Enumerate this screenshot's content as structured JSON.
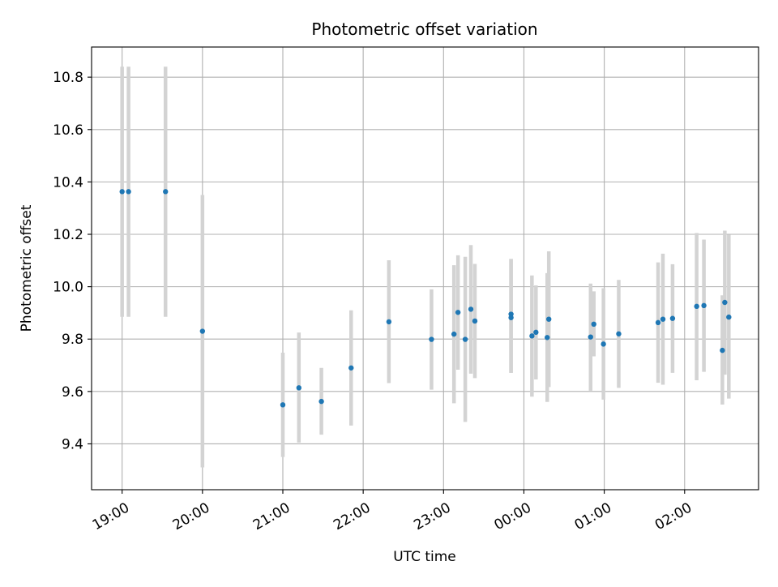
{
  "chart_data": {
    "type": "scatter",
    "title": "Photometric offset variation",
    "xlabel": "UTC time",
    "ylabel": "Photometric offset",
    "x_unit": "hours since 19:00 UTC",
    "xlim": [
      -0.38,
      7.92
    ],
    "ylim": [
      9.225,
      10.915
    ],
    "grid": true,
    "x_ticks": [
      {
        "value": 0,
        "label": "19:00"
      },
      {
        "value": 1,
        "label": "20:00"
      },
      {
        "value": 2,
        "label": "21:00"
      },
      {
        "value": 3,
        "label": "22:00"
      },
      {
        "value": 4,
        "label": "23:00"
      },
      {
        "value": 5,
        "label": "00:00"
      },
      {
        "value": 6,
        "label": "01:00"
      },
      {
        "value": 7,
        "label": "02:00"
      }
    ],
    "y_ticks": [
      {
        "value": 9.4,
        "label": "9.4"
      },
      {
        "value": 9.6,
        "label": "9.6"
      },
      {
        "value": 9.8,
        "label": "9.8"
      },
      {
        "value": 10.0,
        "label": "10.0"
      },
      {
        "value": 10.2,
        "label": "10.2"
      },
      {
        "value": 10.4,
        "label": "10.4"
      },
      {
        "value": 10.6,
        "label": "10.6"
      },
      {
        "value": 10.8,
        "label": "10.8"
      }
    ],
    "colors": {
      "point": "#1f77b4",
      "errorbar": "#d3d3d3",
      "grid": "#b0b0b0"
    },
    "points": [
      {
        "x": 0.0,
        "y": 10.363,
        "lo": 9.885,
        "hi": 10.84
      },
      {
        "x": 0.08,
        "y": 10.363,
        "lo": 9.885,
        "hi": 10.84
      },
      {
        "x": 0.54,
        "y": 10.363,
        "lo": 9.885,
        "hi": 10.84
      },
      {
        "x": 1.0,
        "y": 9.83,
        "lo": 9.31,
        "hi": 10.35
      },
      {
        "x": 2.0,
        "y": 9.549,
        "lo": 9.35,
        "hi": 9.748
      },
      {
        "x": 2.2,
        "y": 9.614,
        "lo": 9.405,
        "hi": 9.825
      },
      {
        "x": 2.48,
        "y": 9.562,
        "lo": 9.435,
        "hi": 9.69
      },
      {
        "x": 2.85,
        "y": 9.69,
        "lo": 9.47,
        "hi": 9.91
      },
      {
        "x": 3.32,
        "y": 9.866,
        "lo": 9.632,
        "hi": 10.101
      },
      {
        "x": 3.85,
        "y": 9.799,
        "lo": 9.607,
        "hi": 9.99
      },
      {
        "x": 4.13,
        "y": 9.819,
        "lo": 9.555,
        "hi": 10.082
      },
      {
        "x": 4.18,
        "y": 9.902,
        "lo": 9.683,
        "hi": 10.12
      },
      {
        "x": 4.27,
        "y": 9.799,
        "lo": 9.484,
        "hi": 10.114
      },
      {
        "x": 4.34,
        "y": 9.914,
        "lo": 9.668,
        "hi": 10.159
      },
      {
        "x": 4.39,
        "y": 9.869,
        "lo": 9.651,
        "hi": 10.087
      },
      {
        "x": 4.84,
        "y": 9.895,
        "lo": 9.671,
        "hi": 10.106
      },
      {
        "x": 4.84,
        "y": 9.882,
        "lo": 9.671,
        "hi": 10.106
      },
      {
        "x": 5.1,
        "y": 9.812,
        "lo": 9.58,
        "hi": 10.043
      },
      {
        "x": 5.15,
        "y": 9.826,
        "lo": 9.646,
        "hi": 10.005
      },
      {
        "x": 5.29,
        "y": 9.806,
        "lo": 9.56,
        "hi": 10.052
      },
      {
        "x": 5.31,
        "y": 9.876,
        "lo": 9.617,
        "hi": 10.135
      },
      {
        "x": 5.83,
        "y": 9.808,
        "lo": 9.603,
        "hi": 10.012
      },
      {
        "x": 5.87,
        "y": 9.857,
        "lo": 9.734,
        "hi": 9.982
      },
      {
        "x": 5.99,
        "y": 9.781,
        "lo": 9.569,
        "hi": 9.994
      },
      {
        "x": 6.18,
        "y": 9.82,
        "lo": 9.614,
        "hi": 10.026
      },
      {
        "x": 6.67,
        "y": 9.863,
        "lo": 9.633,
        "hi": 10.093
      },
      {
        "x": 6.73,
        "y": 9.876,
        "lo": 9.626,
        "hi": 10.126
      },
      {
        "x": 6.85,
        "y": 9.879,
        "lo": 9.671,
        "hi": 10.086
      },
      {
        "x": 7.15,
        "y": 9.925,
        "lo": 9.643,
        "hi": 10.205
      },
      {
        "x": 7.24,
        "y": 9.928,
        "lo": 9.675,
        "hi": 10.18
      },
      {
        "x": 7.47,
        "y": 9.757,
        "lo": 9.55,
        "hi": 9.967
      },
      {
        "x": 7.5,
        "y": 9.94,
        "lo": 9.664,
        "hi": 10.214
      },
      {
        "x": 7.55,
        "y": 9.884,
        "lo": 9.573,
        "hi": 10.198
      }
    ]
  }
}
